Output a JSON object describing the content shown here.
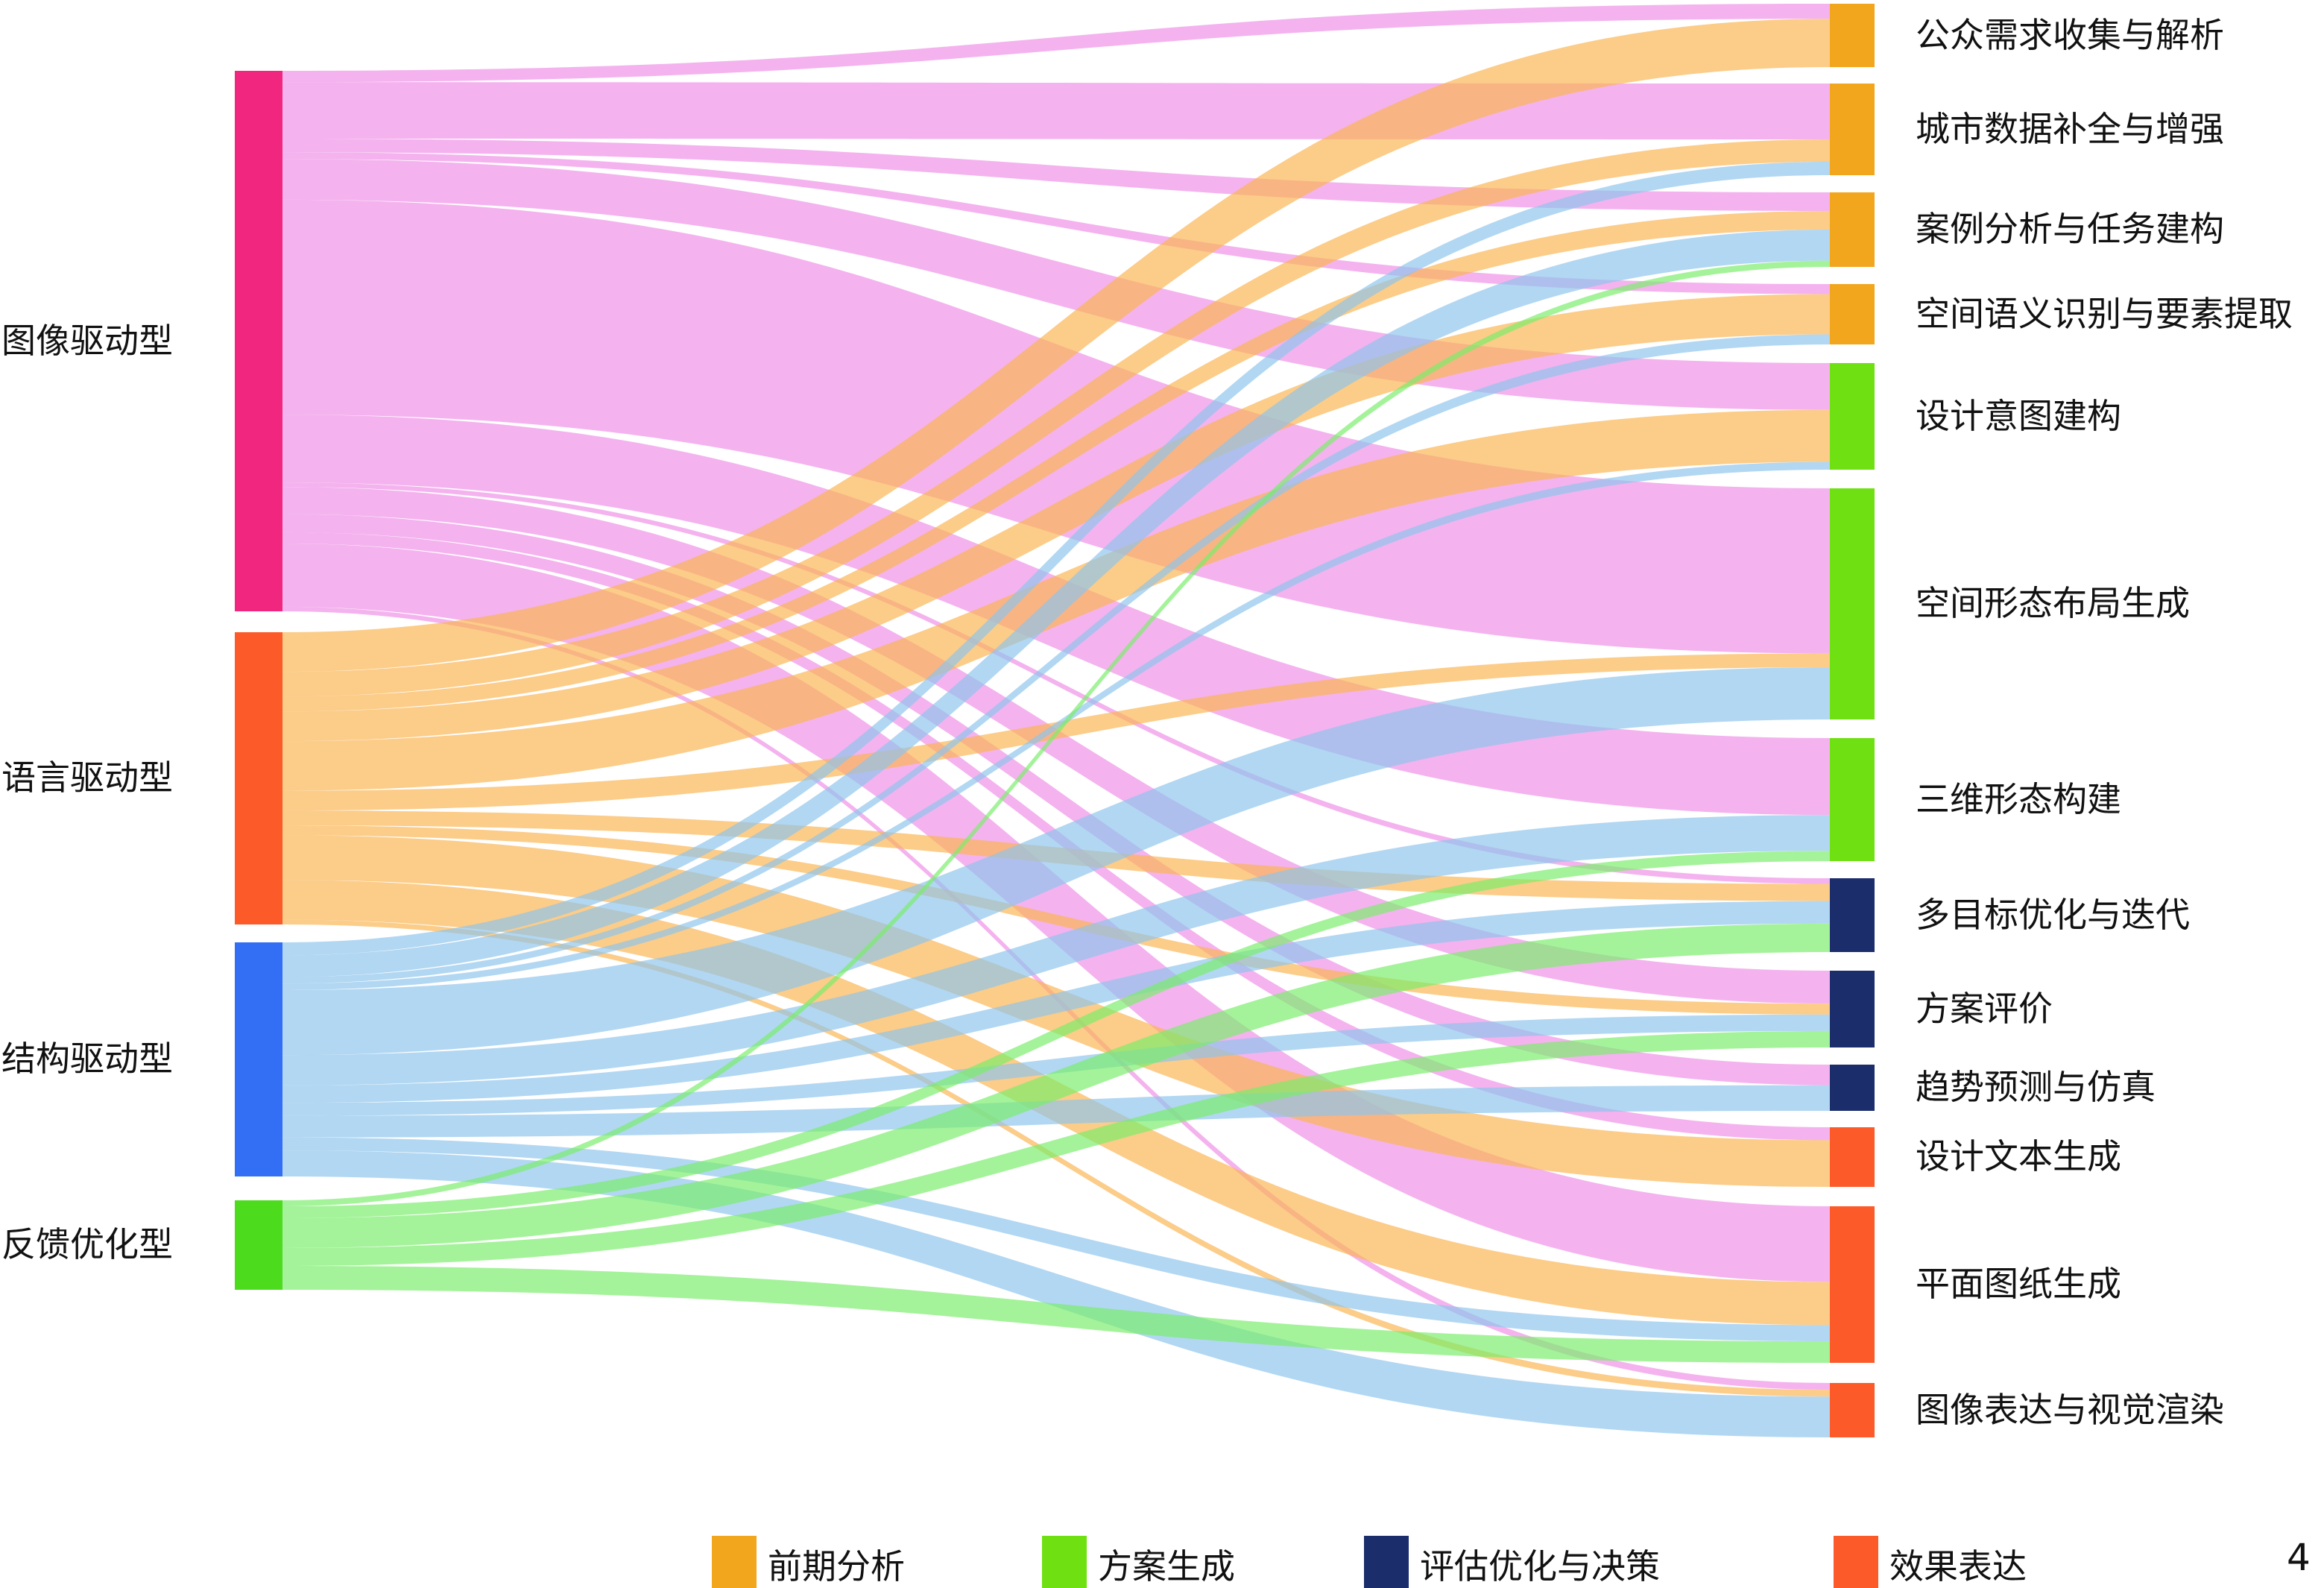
{
  "diagram": {
    "type": "sankey",
    "sources": [
      {
        "id": "img",
        "label": "图像驱动型",
        "color": "#f0267f",
        "link_color": "#ef8fe6"
      },
      {
        "id": "lang",
        "label": "语言驱动型",
        "color": "#fd5a2a",
        "link_color": "#fbb451"
      },
      {
        "id": "struct",
        "label": "结构驱动型",
        "color": "#336ff4",
        "link_color": "#8ec4ec"
      },
      {
        "id": "fb",
        "label": "反馈优化型",
        "color": "#4ddb1d",
        "link_color": "#79ee6a"
      }
    ],
    "targets": [
      {
        "id": "t1",
        "label": "公众需求收集与解析",
        "category": "前期分析"
      },
      {
        "id": "t2",
        "label": "城市数据补全与增强",
        "category": "前期分析"
      },
      {
        "id": "t3",
        "label": "案例分析与任务建构",
        "category": "前期分析"
      },
      {
        "id": "t4",
        "label": "空间语义识别与要素提取",
        "category": "前期分析"
      },
      {
        "id": "t5",
        "label": "设计意图建构",
        "category": "方案生成"
      },
      {
        "id": "t6",
        "label": "空间形态布局生成",
        "category": "方案生成"
      },
      {
        "id": "t7",
        "label": "三维形态构建",
        "category": "方案生成"
      },
      {
        "id": "t8",
        "label": "多目标优化与迭代",
        "category": "评估优化与决策"
      },
      {
        "id": "t9",
        "label": "方案评价",
        "category": "评估优化与决策"
      },
      {
        "id": "t10",
        "label": "趋势预测与仿真",
        "category": "评估优化与决策"
      },
      {
        "id": "t11",
        "label": "设计文本生成",
        "category": "效果表达"
      },
      {
        "id": "t12",
        "label": "平面图纸生成",
        "category": "效果表达"
      },
      {
        "id": "t13",
        "label": "图像表达与视觉渲染",
        "category": "效果表达"
      }
    ],
    "links": [
      {
        "source": "img",
        "target": "t1",
        "value": 5
      },
      {
        "source": "img",
        "target": "t2",
        "value": 25
      },
      {
        "source": "img",
        "target": "t3",
        "value": 6
      },
      {
        "source": "img",
        "target": "t4",
        "value": 3
      },
      {
        "source": "img",
        "target": "t5",
        "value": 18
      },
      {
        "source": "img",
        "target": "t6",
        "value": 95
      },
      {
        "source": "img",
        "target": "t7",
        "value": 30
      },
      {
        "source": "img",
        "target": "t8",
        "value": 2
      },
      {
        "source": "img",
        "target": "t9",
        "value": 12
      },
      {
        "source": "img",
        "target": "t10",
        "value": 8
      },
      {
        "source": "img",
        "target": "t11",
        "value": 5
      },
      {
        "source": "img",
        "target": "t12",
        "value": 28
      },
      {
        "source": "img",
        "target": "t13",
        "value": 2
      },
      {
        "source": "lang",
        "target": "t1",
        "value": 16
      },
      {
        "source": "lang",
        "target": "t2",
        "value": 10
      },
      {
        "source": "lang",
        "target": "t3",
        "value": 6
      },
      {
        "source": "lang",
        "target": "t4",
        "value": 12
      },
      {
        "source": "lang",
        "target": "t5",
        "value": 20
      },
      {
        "source": "lang",
        "target": "t6",
        "value": 8
      },
      {
        "source": "lang",
        "target": "t8",
        "value": 6
      },
      {
        "source": "lang",
        "target": "t9",
        "value": 4
      },
      {
        "source": "lang",
        "target": "t11",
        "value": 18
      },
      {
        "source": "lang",
        "target": "t12",
        "value": 16
      },
      {
        "source": "lang",
        "target": "t13",
        "value": 2
      },
      {
        "source": "struct",
        "target": "t2",
        "value": 6
      },
      {
        "source": "struct",
        "target": "t3",
        "value": 10
      },
      {
        "source": "struct",
        "target": "t4",
        "value": 3
      },
      {
        "source": "struct",
        "target": "t5",
        "value": 3
      },
      {
        "source": "struct",
        "target": "t6",
        "value": 30
      },
      {
        "source": "struct",
        "target": "t7",
        "value": 14
      },
      {
        "source": "struct",
        "target": "t8",
        "value": 8
      },
      {
        "source": "struct",
        "target": "t9",
        "value": 6
      },
      {
        "source": "struct",
        "target": "t10",
        "value": 10
      },
      {
        "source": "struct",
        "target": "t12",
        "value": 6
      },
      {
        "source": "struct",
        "target": "t13",
        "value": 12
      },
      {
        "source": "fb",
        "target": "t3",
        "value": 2
      },
      {
        "source": "fb",
        "target": "t7",
        "value": 4
      },
      {
        "source": "fb",
        "target": "t8",
        "value": 10
      },
      {
        "source": "fb",
        "target": "t9",
        "value": 6
      },
      {
        "source": "fb",
        "target": "t12",
        "value": 8
      }
    ]
  },
  "legend": [
    {
      "label": "前期分析",
      "color": "#f2a61e"
    },
    {
      "label": "方案生成",
      "color": "#6fe012"
    },
    {
      "label": "评估优化与决策",
      "color": "#1b2d6b"
    },
    {
      "label": "效果表达",
      "color": "#fd5a2a"
    }
  ],
  "page_number": "4"
}
